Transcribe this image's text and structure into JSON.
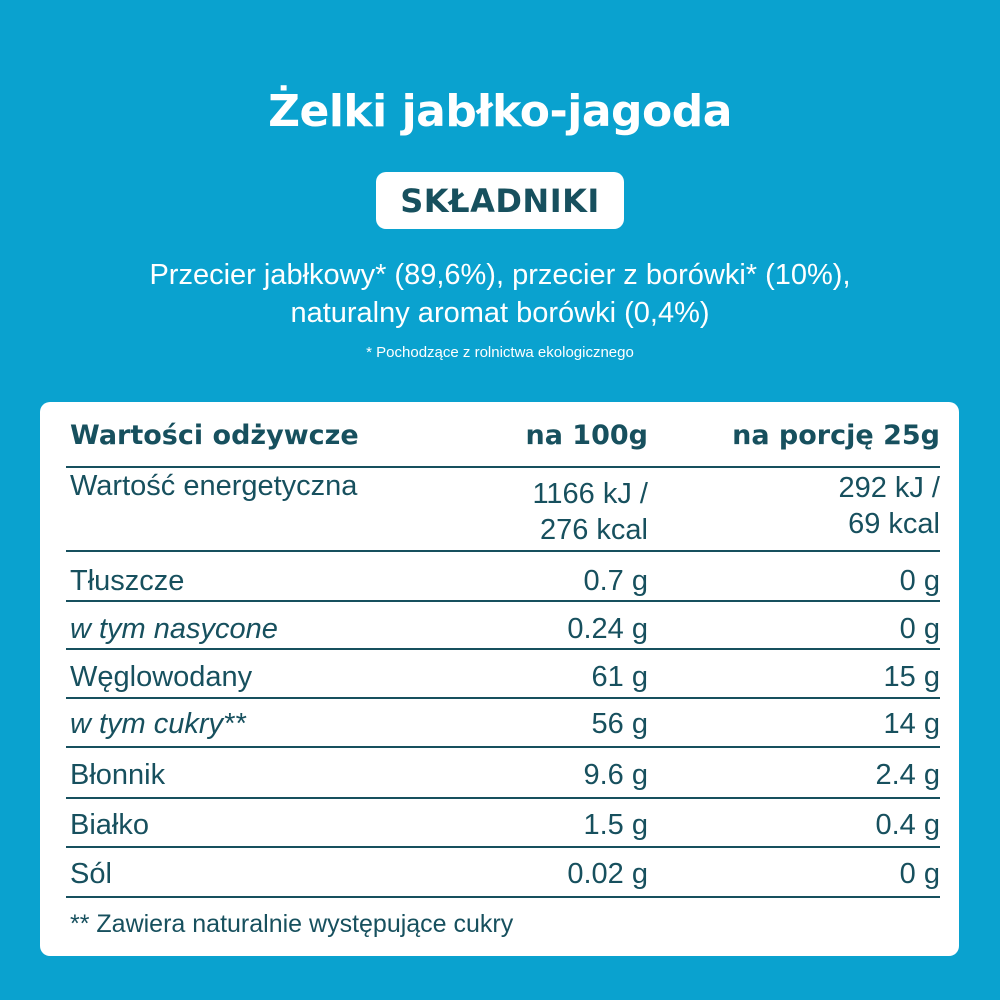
{
  "title": "Żelki jabłko-jagoda",
  "badge": "SKŁADNIKI",
  "ingredients": {
    "line1": "Przecier jabłkowy* (89,6%), przecier z borówki* (10%),",
    "line2": "naturalny aromat borówki (0,4%)"
  },
  "footnote_organic": "*  Pochodzące z rolnictwa ekologicznego",
  "table": {
    "headers": [
      "Wartości odżywcze",
      "na 100g",
      "na porcję 25g"
    ],
    "rows": [
      {
        "label": "Wartość energetyczna",
        "per100_l1": "1166 kJ /",
        "per100_l2": "276 kcal",
        "portion_l1": "292 kJ /",
        "portion_l2": "69 kcal"
      },
      {
        "label": "Tłuszcze",
        "per100": "0.7 g",
        "portion": "0 g"
      },
      {
        "label": "w tym nasycone",
        "per100": "0.24 g",
        "portion": "0 g"
      },
      {
        "label": "Węglowodany",
        "per100": "61 g",
        "portion": "15 g"
      },
      {
        "label": "w tym cukry**",
        "per100": "56 g",
        "portion": "14 g"
      },
      {
        "label": "Błonnik",
        "per100": "9.6 g",
        "portion": "2.4 g"
      },
      {
        "label": "Białko",
        "per100": "1.5 g",
        "portion": "0.4 g"
      },
      {
        "label": "Sól",
        "per100": "0.02 g",
        "portion": "0 g"
      }
    ],
    "footnote": "** Zawiera naturalnie występujące cukry"
  },
  "colors": {
    "background": "#0aa2cf",
    "text_dark": "#17505e",
    "card": "#ffffff"
  }
}
